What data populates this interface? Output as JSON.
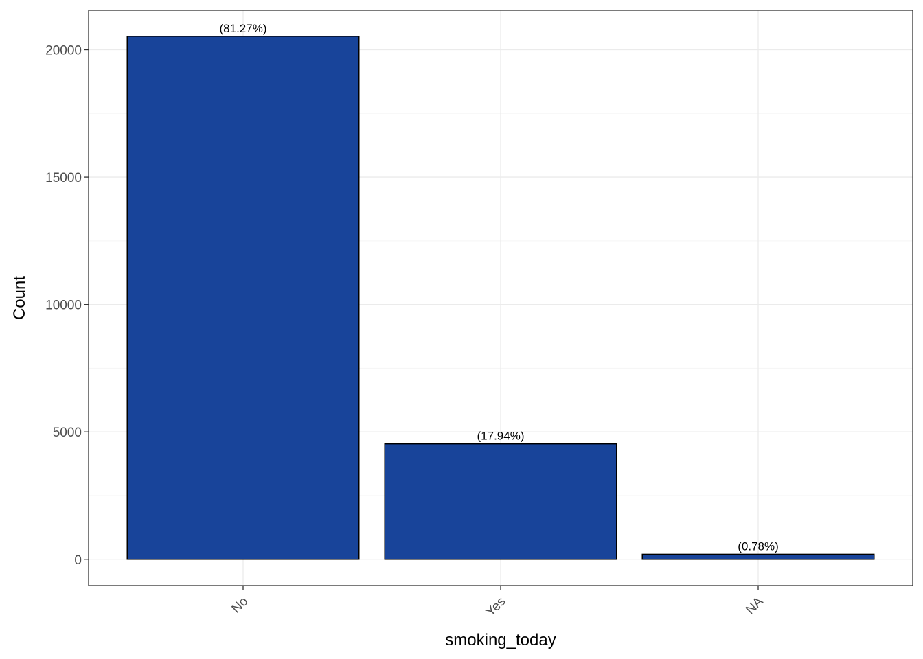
{
  "chart_data": {
    "type": "bar",
    "title": "",
    "xlabel": "smoking_today",
    "ylabel": "Count",
    "categories": [
      "No",
      "Yes",
      "NA"
    ],
    "values": [
      20530,
      4530,
      198
    ],
    "data_labels": [
      "(81.27%)",
      "(17.94%)",
      "(0.78%)"
    ],
    "ylim": [
      -1030,
      21550
    ],
    "y_ticks": [
      0,
      5000,
      10000,
      15000,
      20000
    ],
    "y_tick_labels": [
      "0",
      "5000",
      "10000",
      "15000",
      "20000"
    ],
    "grid": true,
    "legend": "none",
    "colors": {
      "bar_fill": "#18449A",
      "bar_stroke": "#000000",
      "grid_major": "#EBEBEB",
      "grid_minor": "#F5F5F5",
      "panel_border": "#333333",
      "tick_text": "#4D4D4D"
    }
  }
}
